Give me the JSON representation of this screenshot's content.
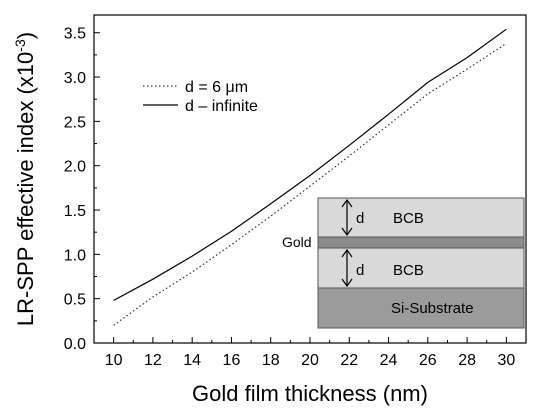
{
  "chart_data": {
    "type": "line",
    "xlabel": "Gold film thickness (nm)",
    "ylabel_main": "LR-SPP effective index (x10",
    "ylabel_exp": "-3",
    "ylabel_close": ")",
    "xlim": [
      9,
      31
    ],
    "ylim": [
      0,
      3.7
    ],
    "xticks": [
      10,
      12,
      14,
      16,
      18,
      20,
      22,
      24,
      26,
      28,
      30
    ],
    "yticks": [
      0.0,
      0.5,
      1.0,
      1.5,
      2.0,
      2.5,
      3.0,
      3.5
    ],
    "ytick_labels": [
      "0.0",
      "0.5",
      "1.0",
      "1.5",
      "2.0",
      "2.5",
      "3.0",
      "3.5"
    ],
    "grid": false,
    "legend_position": "top-left",
    "series": [
      {
        "name": "d = 6 μm",
        "style": "dotted",
        "x": [
          10,
          12,
          14,
          16,
          18,
          20,
          22,
          24,
          26,
          28,
          30
        ],
        "y": [
          0.2,
          0.52,
          0.8,
          1.11,
          1.43,
          1.77,
          2.11,
          2.46,
          2.81,
          3.09,
          3.38
        ]
      },
      {
        "name": "d – infinite",
        "style": "solid",
        "x": [
          10,
          12,
          14,
          16,
          18,
          20,
          22,
          24,
          26,
          28,
          30
        ],
        "y": [
          0.48,
          0.72,
          0.98,
          1.26,
          1.57,
          1.89,
          2.23,
          2.58,
          2.94,
          3.22,
          3.54
        ]
      }
    ],
    "inset": {
      "layers": [
        "BCB",
        "Gold",
        "BCB",
        "Si-Substrate"
      ],
      "top_bcb_label": "BCB",
      "gold_label": "Gold",
      "lower_bcb_label": "BCB",
      "substrate_label": "Si-Substrate",
      "d_label_top": "d",
      "d_label_bottom": "d",
      "colors": {
        "bcb": "#d9d9d9",
        "gold": "#8c8c8c",
        "substrate": "#9b9b9b",
        "border": "#555555"
      }
    }
  }
}
